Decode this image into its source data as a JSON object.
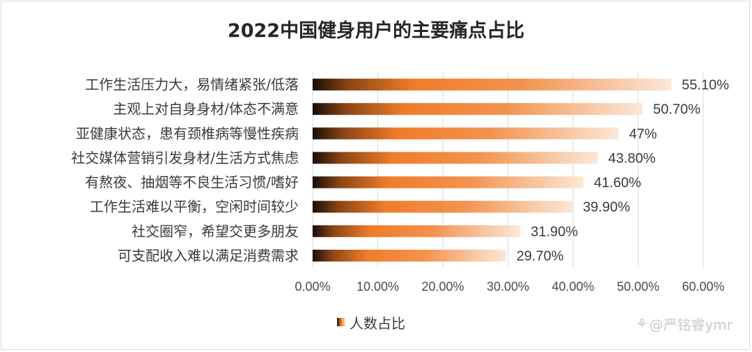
{
  "chart_data": {
    "type": "bar",
    "orientation": "horizontal",
    "title": "2022中国健身用户的主要痛点占比",
    "categories": [
      "工作生活压力大，易情绪紧张/低落",
      "主观上对自身身材/体态不满意",
      "亚健康状态，患有颈椎病等慢性疾病",
      "社交媒体营销引发身材/生活方式焦虑",
      "有熬夜、抽烟等不良生活习惯/嗜好",
      "工作生活难以平衡，空闲时间较少",
      "社交圈窄，希望交更多朋友",
      "可支配收入难以满足消费需求"
    ],
    "series": [
      {
        "name": "人数占比",
        "values": [
          55.1,
          50.7,
          47,
          43.8,
          41.6,
          39.9,
          31.9,
          29.7
        ],
        "value_labels": [
          "55.10%",
          "50.70%",
          "47%",
          "43.80%",
          "41.60%",
          "39.90%",
          "31.90%",
          "29.70%"
        ]
      }
    ],
    "xlim": [
      0,
      60
    ],
    "xticks": [
      "0.00%",
      "10.00%",
      "20.00%",
      "30.00%",
      "40.00%",
      "50.00%",
      "60.00%"
    ],
    "legend": "bottom",
    "grid": true,
    "colors": {
      "bar_dark": "#1a0d05",
      "bar_mid": "#f07c2a",
      "bar_light": "#fbe3cf",
      "grid": "#d9d9d9"
    }
  },
  "watermark": {
    "icon": "zhihu-logo-icon",
    "text": "@严铭睿ymr"
  }
}
